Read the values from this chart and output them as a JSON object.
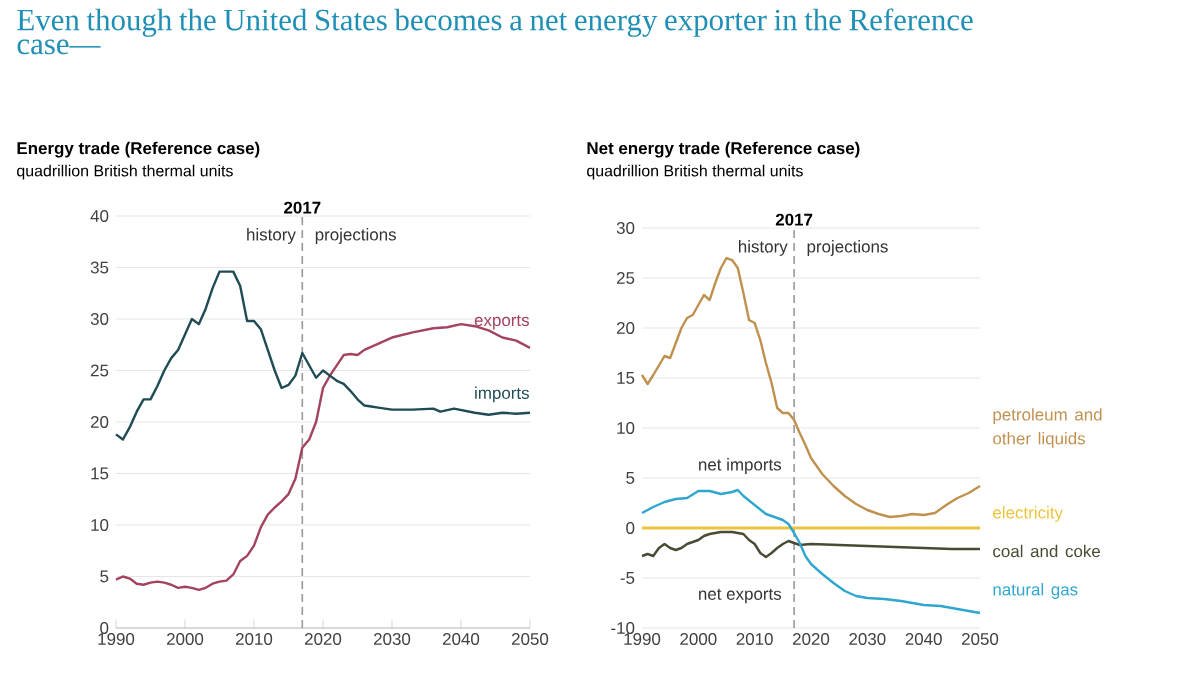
{
  "chart_data": [
    {
      "type": "line",
      "title": "Energy trade (Reference case)",
      "subtitle": "quadrillion British thermal units",
      "annotations": [
        "Even though the United States becomes a net energy exporter in the Reference case—",
        "history",
        "projections"
      ],
      "series": [
        {
          "name": "exports",
          "color": "#a3435e",
          "x": [
            1990,
            1991,
            1992,
            1993,
            1994,
            1995,
            1996,
            1997,
            1998,
            1999,
            2000,
            2001,
            2002,
            2003,
            2004,
            2005,
            2006,
            2007,
            2008,
            2009,
            2010,
            2011,
            2012,
            2013,
            2014,
            2015,
            2016,
            2017,
            2018,
            2019,
            2020,
            2021,
            2022,
            2023,
            2024,
            2025,
            2026,
            2028,
            2030,
            2033,
            2036,
            2038,
            2040,
            2042,
            2044,
            2046,
            2048,
            2050
          ],
          "values": [
            4.7,
            5.0,
            4.8,
            4.3,
            4.2,
            4.4,
            4.5,
            4.4,
            4.2,
            3.9,
            4.0,
            3.9,
            3.7,
            3.9,
            4.3,
            4.5,
            4.6,
            5.2,
            6.5,
            7.0,
            8.0,
            9.8,
            11.0,
            11.7,
            12.3,
            13.0,
            14.5,
            17.5,
            18.3,
            20.0,
            23.3,
            24.5,
            25.5,
            26.5,
            26.6,
            26.5,
            27.0,
            27.6,
            28.2,
            28.7,
            29.1,
            29.2,
            29.5,
            29.3,
            28.9,
            28.2,
            27.9,
            27.2
          ]
        },
        {
          "name": "imports",
          "color": "#1f4b55",
          "x": [
            1990,
            1991,
            1992,
            1993,
            1994,
            1995,
            1996,
            1997,
            1998,
            1999,
            2000,
            2001,
            2002,
            2003,
            2004,
            2005,
            2006,
            2007,
            2008,
            2009,
            2010,
            2011,
            2012,
            2013,
            2014,
            2015,
            2016,
            2017,
            2018,
            2019,
            2020,
            2021,
            2022,
            2023,
            2024,
            2025,
            2026,
            2027,
            2028,
            2030,
            2033,
            2036,
            2037,
            2039,
            2042,
            2044,
            2046,
            2048,
            2050
          ],
          "values": [
            18.8,
            18.3,
            19.5,
            21,
            22.2,
            22.2,
            23.5,
            25,
            26.2,
            27,
            28.5,
            30,
            29.5,
            31,
            33,
            34.6,
            34.6,
            34.6,
            33.2,
            29.8,
            29.8,
            29,
            27,
            25,
            23.3,
            23.6,
            24.5,
            26.7,
            25.5,
            24.3,
            25,
            24.5,
            24,
            23.7,
            23,
            22.2,
            21.6,
            21.5,
            21.4,
            21.2,
            21.2,
            21.3,
            21.0,
            21.3,
            20.9,
            20.7,
            20.9,
            20.8,
            20.9
          ]
        }
      ],
      "xlim": [
        1990,
        2050
      ],
      "ylim": [
        0,
        40
      ],
      "xticks": [
        1990,
        2000,
        2010,
        2020,
        2030,
        2040,
        2050
      ],
      "yticks": [
        0,
        5,
        10,
        15,
        20,
        25,
        30,
        35,
        40
      ],
      "grid": "y",
      "ref_lines": [
        {
          "axis": "x",
          "value": 2017,
          "label": "2017",
          "color": "#999999",
          "line_style": "dashed"
        }
      ]
    },
    {
      "type": "line",
      "title": "Net energy trade (Reference case)",
      "subtitle": "quadrillion British thermal units",
      "annotations": [
        "history",
        "projections",
        "net imports",
        "net exports"
      ],
      "series": [
        {
          "name": "petroleum and other liquids",
          "color": "#c0904e",
          "x": [
            1990,
            1991,
            1992,
            1994,
            1995,
            1997,
            1998,
            1999,
            2000,
            2001,
            2002,
            2003,
            2004,
            2005,
            2006,
            2007,
            2008,
            2009,
            2010,
            2011,
            2012,
            2013,
            2014,
            2015,
            2016,
            2017,
            2018,
            2019,
            2020,
            2022,
            2024,
            2026,
            2028,
            2030,
            2032,
            2034,
            2036,
            2038,
            2040,
            2042,
            2044,
            2046,
            2048,
            2050
          ],
          "values": [
            15.3,
            14.4,
            15.3,
            17.2,
            17.0,
            20.0,
            21.0,
            21.3,
            22.3,
            23.3,
            22.8,
            24.5,
            26.0,
            27.0,
            26.8,
            26.0,
            23.5,
            20.8,
            20.5,
            18.8,
            16.5,
            14.5,
            12.0,
            11.5,
            11.5,
            10.8,
            9.5,
            8.3,
            7.0,
            5.4,
            4.2,
            3.2,
            2.4,
            1.8,
            1.4,
            1.1,
            1.2,
            1.4,
            1.3,
            1.5,
            2.3,
            3.0,
            3.5,
            4.2
          ]
        },
        {
          "name": "electricity",
          "color": "#eec33c",
          "x": [
            1990,
            2050
          ],
          "values": [
            0,
            0
          ]
        },
        {
          "name": "coal and coke",
          "color": "#4a4a32",
          "x": [
            1990,
            1991,
            1992,
            1993,
            1994,
            1995,
            1996,
            1997,
            1998,
            1999,
            2000,
            2001,
            2002,
            2004,
            2006,
            2008,
            2009,
            2010,
            2011,
            2012,
            2013,
            2014,
            2015,
            2016,
            2017,
            2018,
            2020,
            2025,
            2030,
            2035,
            2040,
            2045,
            2050
          ],
          "values": [
            -2.8,
            -2.6,
            -2.8,
            -2.0,
            -1.6,
            -2.0,
            -2.2,
            -2.0,
            -1.6,
            -1.4,
            -1.2,
            -0.8,
            -0.6,
            -0.4,
            -0.4,
            -0.6,
            -1.2,
            -1.6,
            -2.5,
            -2.9,
            -2.5,
            -2.0,
            -1.6,
            -1.3,
            -1.5,
            -1.7,
            -1.6,
            -1.7,
            -1.8,
            -1.9,
            -2.0,
            -2.1,
            -2.1
          ]
        },
        {
          "name": "natural gas",
          "color": "#2fa6cf",
          "x": [
            1990,
            1992,
            1994,
            1996,
            1998,
            2000,
            2002,
            2004,
            2006,
            2007,
            2008,
            2010,
            2012,
            2014,
            2015,
            2016,
            2017,
            2018,
            2019,
            2020,
            2022,
            2024,
            2026,
            2028,
            2030,
            2033,
            2036,
            2040,
            2043,
            2046,
            2050
          ],
          "values": [
            1.5,
            2.1,
            2.6,
            2.9,
            3.0,
            3.7,
            3.7,
            3.4,
            3.6,
            3.8,
            3.2,
            2.3,
            1.4,
            1.0,
            0.8,
            0.4,
            -0.5,
            -1.5,
            -2.8,
            -3.6,
            -4.6,
            -5.5,
            -6.3,
            -6.8,
            -7.0,
            -7.1,
            -7.3,
            -7.7,
            -7.8,
            -8.1,
            -8.5
          ]
        }
      ],
      "xlim": [
        1990,
        2050
      ],
      "ylim": [
        -10,
        30
      ],
      "xticks": [
        1990,
        2000,
        2010,
        2020,
        2030,
        2040,
        2050
      ],
      "yticks": [
        -10,
        -5,
        0,
        5,
        10,
        15,
        20,
        25,
        30
      ],
      "grid": "y",
      "ref_lines": [
        {
          "axis": "x",
          "value": 2017,
          "label": "2017",
          "color": "#999999",
          "line_style": "dashed"
        }
      ]
    }
  ]
}
